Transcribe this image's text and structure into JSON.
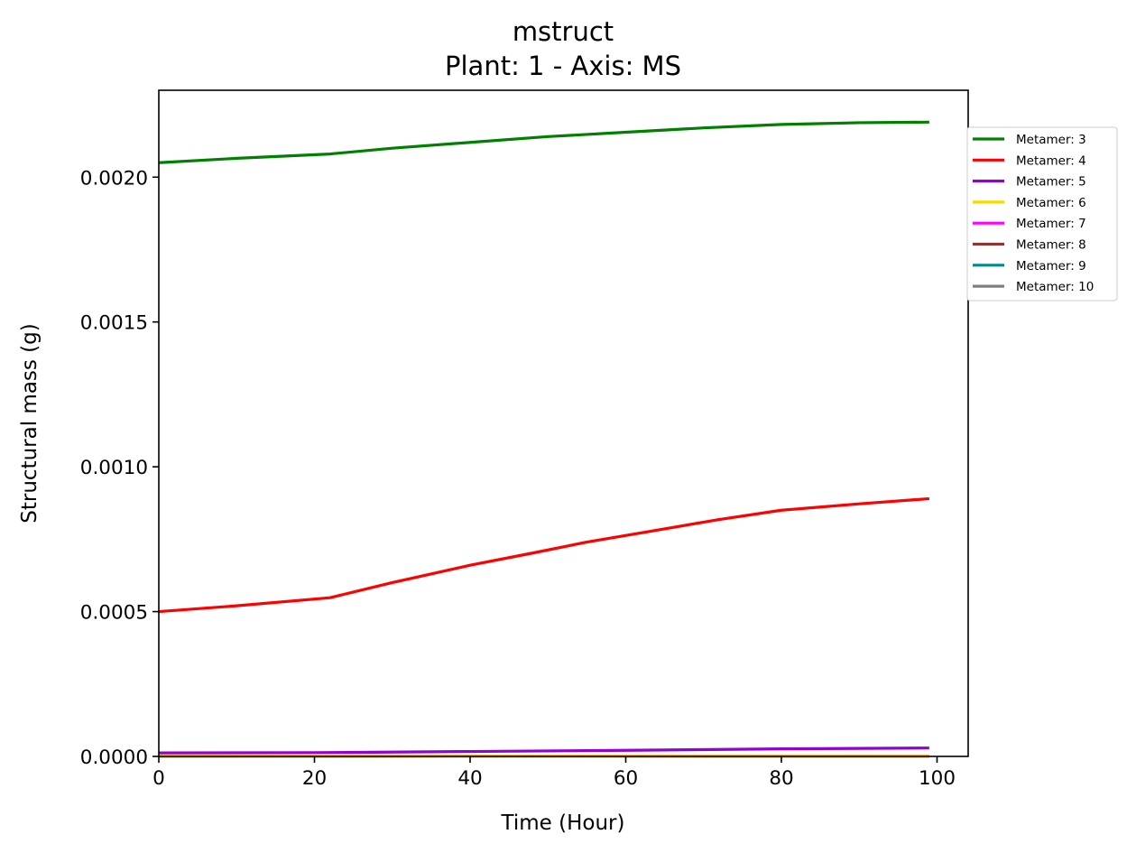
{
  "chart_data": {
    "type": "line",
    "title": "mstruct",
    "subtitle": "Plant: 1 - Axis: MS",
    "xlabel": "Time (Hour)",
    "ylabel": "Structural mass (g)",
    "xlim": [
      0,
      104
    ],
    "ylim": [
      0,
      0.0023
    ],
    "xticks": [
      0,
      20,
      40,
      60,
      80,
      100
    ],
    "xtick_labels": [
      "0",
      "20",
      "40",
      "60",
      "80",
      "100"
    ],
    "yticks": [
      0,
      0.0005,
      0.001,
      0.0015,
      0.002
    ],
    "ytick_labels": [
      "0.0000",
      "0.0005",
      "0.0010",
      "0.0015",
      "0.0020"
    ],
    "grid": false,
    "legend_position": "outside-right",
    "series": [
      {
        "name": "Metamer: 3",
        "color": "#008000",
        "x": [
          0,
          10,
          22,
          30,
          40,
          50,
          60,
          70,
          80,
          90,
          99
        ],
        "y": [
          0.00205,
          0.002065,
          0.00208,
          0.0021,
          0.00212,
          0.00214,
          0.002155,
          0.00217,
          0.002182,
          0.002188,
          0.00219
        ]
      },
      {
        "name": "Metamer: 4",
        "color": "#ff0000",
        "x": [
          0,
          10,
          22,
          30,
          40,
          48,
          55,
          62,
          72,
          80,
          90,
          99
        ],
        "y": [
          0.0005,
          0.00052,
          0.000548,
          0.0006,
          0.00066,
          0.000702,
          0.00074,
          0.000772,
          0.000818,
          0.00085,
          0.000872,
          0.00089
        ]
      },
      {
        "name": "Metamer: 5",
        "color": "#9400d3",
        "x": [
          0,
          20,
          40,
          60,
          80,
          99
        ],
        "y": [
          1.2e-05,
          1.3e-05,
          1.7e-05,
          2.1e-05,
          2.6e-05,
          2.9e-05
        ]
      },
      {
        "name": "Metamer: 6",
        "color": "#ffd700",
        "x": [
          0,
          99
        ],
        "y": [
          4e-07,
          6e-07
        ]
      },
      {
        "name": "Metamer: 7",
        "color": "#ff00ff",
        "x": [
          0,
          99
        ],
        "y": [
          3e-07,
          4e-07
        ]
      },
      {
        "name": "Metamer: 8",
        "color": "#a52a2a",
        "x": [
          0,
          99
        ],
        "y": [
          2e-07,
          3e-07
        ]
      },
      {
        "name": "Metamer: 9",
        "color": "#008b8b",
        "x": [
          0,
          99
        ],
        "y": [
          1e-07,
          2e-07
        ]
      },
      {
        "name": "Metamer: 10",
        "color": "#808080",
        "x": [
          0,
          99
        ],
        "y": [
          1e-07,
          1e-07
        ]
      }
    ]
  }
}
